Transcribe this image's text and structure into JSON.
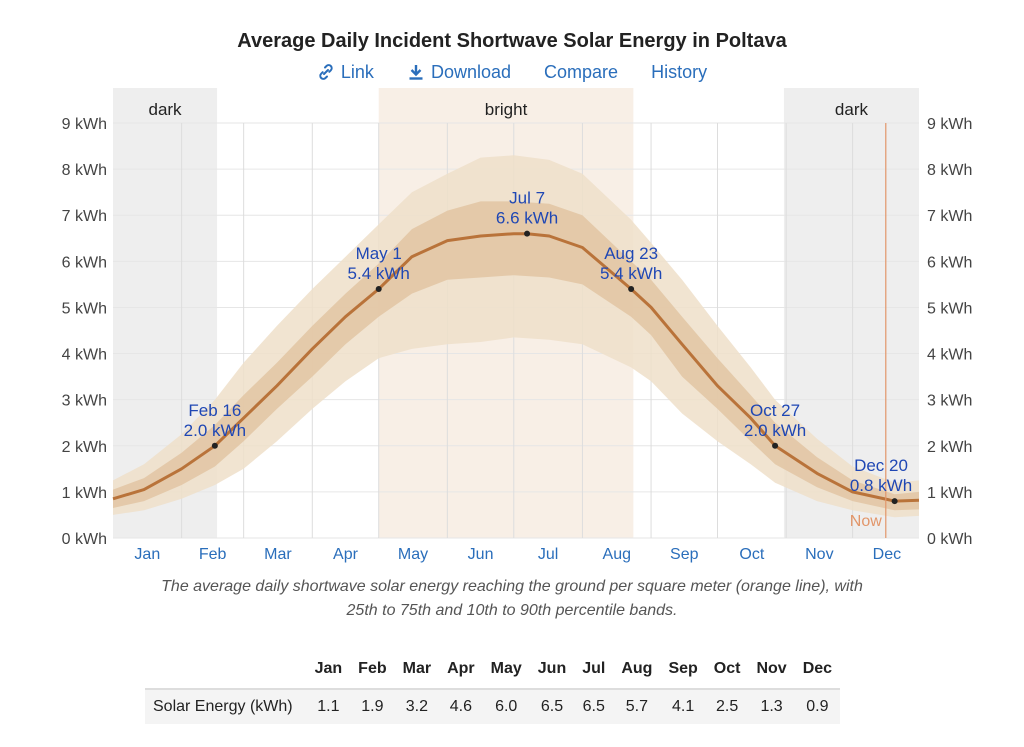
{
  "title": "Average Daily Incident Shortwave Solar Energy in Poltava",
  "toolbar": {
    "link": {
      "label": "Link",
      "icon": "link-icon"
    },
    "download": {
      "label": "Download",
      "icon": "download-icon"
    },
    "compare": {
      "label": "Compare"
    },
    "history": {
      "label": "History"
    }
  },
  "caption_line1": "The average daily shortwave solar energy reaching the ground per square meter (orange line), with",
  "caption_line2": "25th to 75th and 10th to 90th percentile bands.",
  "colors": {
    "mean_line": "#b9733a",
    "band_inner": "#e2c7a5",
    "band_outer": "#efdfc9",
    "season_dark": "#eeeeee",
    "season_bright": "#f8efe6",
    "annotation_text": "#1f47b4",
    "month_labels": "#2a6ebb",
    "now_line": "#e2966a"
  },
  "chart_data": {
    "type": "area",
    "unit": "kWh",
    "y_axis": {
      "min": 0,
      "max": 9,
      "ticks": [
        "0 kWh",
        "1 kWh",
        "2 kWh",
        "3 kWh",
        "4 kWh",
        "5 kWh",
        "6 kWh",
        "7 kWh",
        "8 kWh",
        "9 kWh"
      ]
    },
    "months": [
      "Jan",
      "Feb",
      "Mar",
      "Apr",
      "May",
      "Jun",
      "Jul",
      "Aug",
      "Sep",
      "Oct",
      "Nov",
      "Dec"
    ],
    "seasons": [
      {
        "label": "dark",
        "start_day": 1,
        "end_day": 48
      },
      {
        "label": "bright",
        "start_day": 121,
        "end_day": 236
      },
      {
        "label": "dark",
        "start_day": 304,
        "end_day": 365
      }
    ],
    "now": {
      "label": "Now",
      "day": 350
    },
    "series": [
      {
        "name": "Average daily solar energy",
        "kind": "line",
        "x_day": [
          1,
          15,
          32,
          47,
          60,
          75,
          91,
          106,
          121,
          136,
          152,
          167,
          182,
          188,
          198,
          213,
          235,
          244,
          258,
          274,
          289,
          300,
          319,
          335,
          354,
          365
        ],
        "values": [
          0.85,
          1.05,
          1.5,
          2.0,
          2.6,
          3.3,
          4.1,
          4.8,
          5.4,
          6.1,
          6.45,
          6.55,
          6.6,
          6.6,
          6.55,
          6.3,
          5.4,
          5.0,
          4.2,
          3.3,
          2.6,
          2.0,
          1.4,
          1.0,
          0.8,
          0.82
        ]
      },
      {
        "name": "25th to 75th percentile",
        "kind": "band",
        "x_day": [
          1,
          15,
          32,
          47,
          60,
          75,
          91,
          106,
          121,
          136,
          152,
          167,
          182,
          198,
          213,
          235,
          244,
          258,
          274,
          289,
          300,
          319,
          335,
          354,
          365
        ],
        "low": [
          0.65,
          0.8,
          1.15,
          1.55,
          2.1,
          2.8,
          3.5,
          4.2,
          4.8,
          5.3,
          5.6,
          5.65,
          5.7,
          5.65,
          5.5,
          4.8,
          4.4,
          3.5,
          2.8,
          2.1,
          1.6,
          1.1,
          0.8,
          0.6,
          0.62
        ],
        "high": [
          1.05,
          1.3,
          1.85,
          2.45,
          3.1,
          3.8,
          4.6,
          5.3,
          5.95,
          6.7,
          7.1,
          7.3,
          7.3,
          7.25,
          7.0,
          6.0,
          5.6,
          4.8,
          3.9,
          3.1,
          2.5,
          1.75,
          1.25,
          0.95,
          1.0
        ]
      },
      {
        "name": "10th to 90th percentile",
        "kind": "band",
        "x_day": [
          1,
          15,
          32,
          47,
          60,
          75,
          91,
          106,
          121,
          136,
          152,
          167,
          182,
          198,
          213,
          235,
          244,
          258,
          274,
          289,
          300,
          319,
          335,
          354,
          365
        ],
        "low": [
          0.5,
          0.6,
          0.85,
          1.15,
          1.5,
          2.1,
          2.8,
          3.4,
          3.9,
          4.1,
          4.2,
          4.25,
          4.35,
          4.3,
          4.2,
          3.7,
          3.4,
          2.7,
          2.1,
          1.6,
          1.2,
          0.8,
          0.6,
          0.45,
          0.48
        ],
        "high": [
          1.25,
          1.6,
          2.25,
          3.0,
          3.8,
          4.6,
          5.4,
          6.1,
          6.8,
          7.5,
          7.9,
          8.25,
          8.3,
          8.2,
          7.9,
          6.9,
          6.4,
          5.6,
          4.6,
          3.7,
          3.0,
          2.15,
          1.55,
          1.2,
          1.25
        ]
      }
    ],
    "annotations": [
      {
        "day": 47,
        "value": 2.0,
        "date": "Feb 16",
        "text": "2.0 kWh"
      },
      {
        "day": 121,
        "value": 5.4,
        "date": "May 1",
        "text": "5.4 kWh"
      },
      {
        "day": 188,
        "value": 6.6,
        "date": "Jul 7",
        "text": "6.6 kWh"
      },
      {
        "day": 235,
        "value": 5.4,
        "date": "Aug 23",
        "text": "5.4 kWh"
      },
      {
        "day": 300,
        "value": 2.0,
        "date": "Oct 27",
        "text": "2.0 kWh"
      },
      {
        "day": 354,
        "value": 0.8,
        "date": "Dec 20",
        "text": "0.8 kWh"
      }
    ]
  },
  "summary_table": {
    "row_label": "Solar Energy (kWh)",
    "months": [
      "Jan",
      "Feb",
      "Mar",
      "Apr",
      "May",
      "Jun",
      "Jul",
      "Aug",
      "Sep",
      "Oct",
      "Nov",
      "Dec"
    ],
    "values": [
      "1.1",
      "1.9",
      "3.2",
      "4.6",
      "6.0",
      "6.5",
      "6.5",
      "5.7",
      "4.1",
      "2.5",
      "1.3",
      "0.9"
    ]
  }
}
